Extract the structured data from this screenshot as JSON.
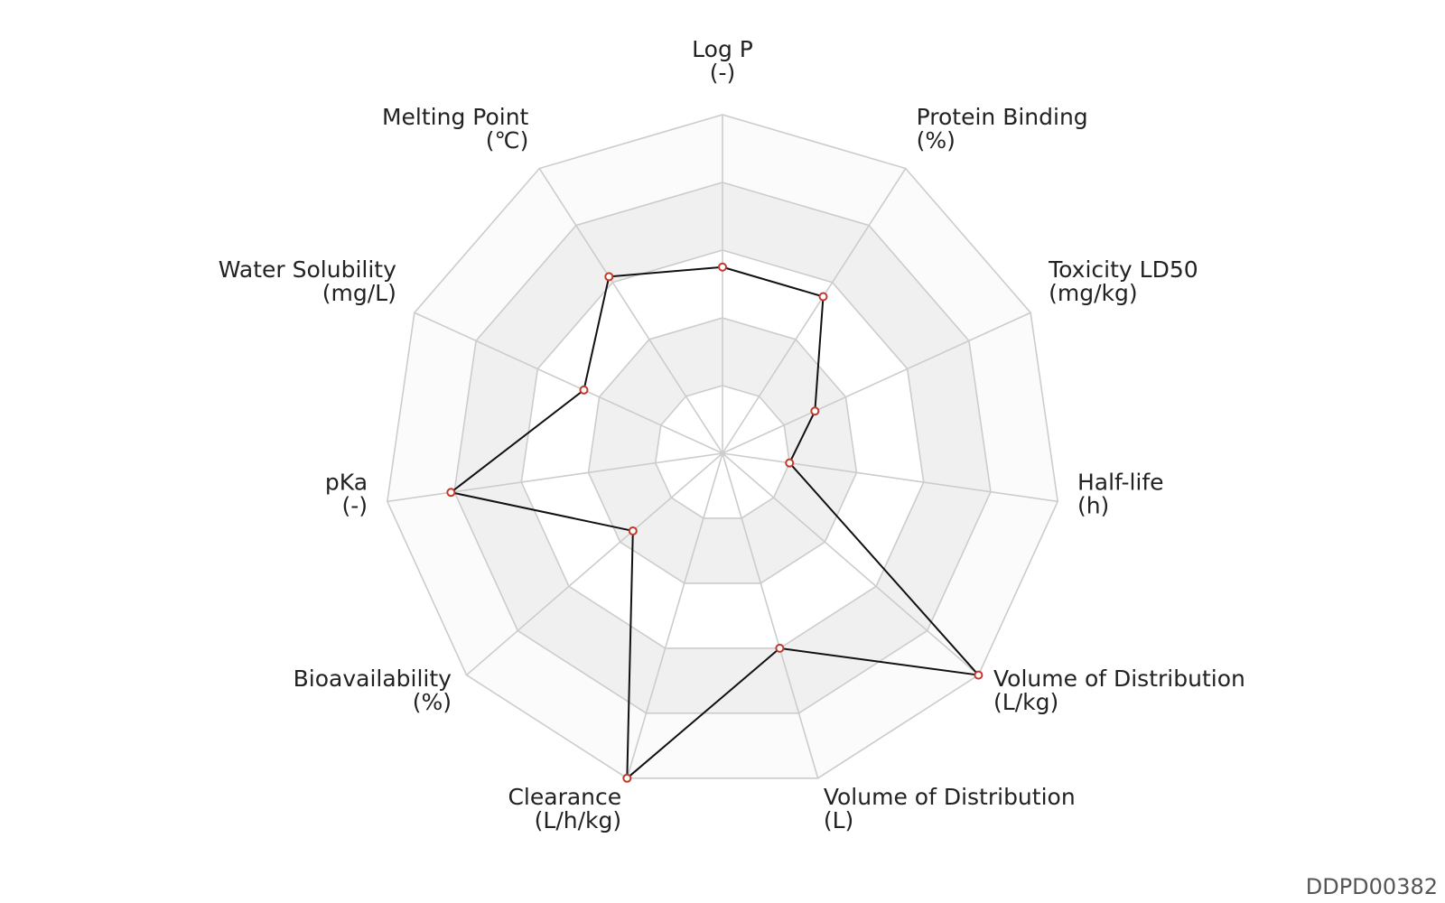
{
  "chart_data": {
    "type": "radar",
    "shape": "polygon",
    "levels": 5,
    "range": [
      0,
      1
    ],
    "split_area_colors": [
      "#ffffff",
      "#f0f0f0",
      "#ffffff",
      "#f0f0f0",
      "#fbfbfb"
    ],
    "grid_color": "#cccccc",
    "line_color": "#111111",
    "marker_color": "#c0392b",
    "indicators": [
      {
        "name": "Log P",
        "unit": "(-)"
      },
      {
        "name": "Protein Binding",
        "unit": "(%)"
      },
      {
        "name": "Toxicity LD50",
        "unit": "(mg/kg)"
      },
      {
        "name": "Half-life",
        "unit": "(h)"
      },
      {
        "name": "Volume of Distribution",
        "unit": "(L/kg)"
      },
      {
        "name": "Volume of Distribution",
        "unit": "(L)"
      },
      {
        "name": "Clearance",
        "unit": "(L/h/kg)"
      },
      {
        "name": "Bioavailability",
        "unit": "(%)"
      },
      {
        "name": "pKa",
        "unit": "(-)"
      },
      {
        "name": "Water Solubility",
        "unit": "(mg/L)"
      },
      {
        "name": "Melting Point",
        "unit": "(℃)"
      }
    ],
    "series": [
      {
        "values": [
          0.55,
          0.55,
          0.3,
          0.2,
          1.0,
          0.6,
          1.0,
          0.35,
          0.81,
          0.45,
          0.62
        ]
      }
    ]
  },
  "watermark": "DDPD00382"
}
